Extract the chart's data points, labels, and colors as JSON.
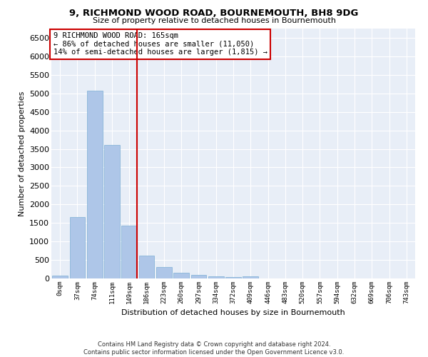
{
  "title": "9, RICHMOND WOOD ROAD, BOURNEMOUTH, BH8 9DG",
  "subtitle": "Size of property relative to detached houses in Bournemouth",
  "xlabel": "Distribution of detached houses by size in Bournemouth",
  "ylabel": "Number of detached properties",
  "bar_color": "#aec6e8",
  "bar_edgecolor": "#7bafd4",
  "background_color": "#e8eef7",
  "grid_color": "#ffffff",
  "fig_facecolor": "#ffffff",
  "categories": [
    "0sqm",
    "37sqm",
    "74sqm",
    "111sqm",
    "149sqm",
    "186sqm",
    "223sqm",
    "260sqm",
    "297sqm",
    "334sqm",
    "372sqm",
    "409sqm",
    "446sqm",
    "483sqm",
    "520sqm",
    "557sqm",
    "594sqm",
    "632sqm",
    "669sqm",
    "706sqm",
    "743sqm"
  ],
  "values": [
    75,
    1650,
    5075,
    3600,
    1420,
    620,
    310,
    155,
    90,
    55,
    30,
    65,
    0,
    0,
    0,
    0,
    0,
    0,
    0,
    0,
    0
  ],
  "ylim": [
    0,
    6750
  ],
  "yticks": [
    0,
    500,
    1000,
    1500,
    2000,
    2500,
    3000,
    3500,
    4000,
    4500,
    5000,
    5500,
    6000,
    6500
  ],
  "vline_color": "#cc0000",
  "vline_pos": 4.459,
  "annotation_text": "9 RICHMOND WOOD ROAD: 165sqm\n← 86% of detached houses are smaller (11,050)\n14% of semi-detached houses are larger (1,815) →",
  "annotation_box_facecolor": "#ffffff",
  "annotation_box_edgecolor": "#cc0000",
  "footer_line1": "Contains HM Land Registry data © Crown copyright and database right 2024.",
  "footer_line2": "Contains public sector information licensed under the Open Government Licence v3.0."
}
